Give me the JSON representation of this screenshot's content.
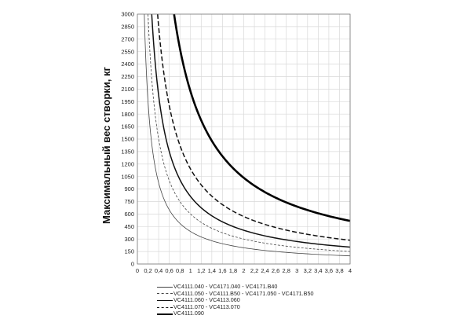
{
  "chart_data": {
    "type": "line",
    "title": "",
    "xlabel": "",
    "ylabel": "Максимальный вес створки, кг",
    "xlim": [
      0,
      4
    ],
    "ylim": [
      0,
      3000
    ],
    "grid": true,
    "legend_position": "bottom",
    "x_ticks": [
      "0",
      "0,2",
      "0,4",
      "0,6",
      "0,8",
      "1",
      "1,2",
      "1,4",
      "1,6",
      "1,8",
      "2",
      "2,2",
      "2,4",
      "2,6",
      "2,8",
      "3",
      "3,2",
      "3,4",
      "3,6",
      "3,8",
      "4"
    ],
    "y_ticks": [
      "0",
      "150",
      "300",
      "450",
      "600",
      "750",
      "900",
      "1050",
      "1200",
      "1350",
      "1500",
      "1650",
      "1800",
      "1950",
      "2100",
      "2250",
      "2400",
      "2550",
      "2700",
      "2850",
      "3000"
    ],
    "series": [
      {
        "name": "VC4111.040 - VC4171.040 - VC4171.B40",
        "style": "thin",
        "color": "#444444",
        "x": [
          0.13,
          0.15,
          0.2,
          0.3,
          0.4,
          0.5,
          0.6,
          0.8,
          1.0,
          1.2,
          1.5,
          2.0,
          2.5,
          3.0,
          3.5,
          4.0
        ],
        "y": [
          3000,
          2640,
          1980,
          1320,
          990,
          792,
          660,
          495,
          396,
          330,
          264,
          198,
          158,
          132,
          113,
          99
        ]
      },
      {
        "name": "VC4111.050 - VC4111.B50 - VC4171.050 - VC4171.B50",
        "style": "thin-dashed",
        "color": "#444444",
        "x": [
          0.2,
          0.25,
          0.3,
          0.4,
          0.5,
          0.6,
          0.8,
          1.0,
          1.2,
          1.5,
          2.0,
          2.5,
          3.0,
          3.5,
          4.0
        ],
        "y": [
          3000,
          2400,
          2000,
          1500,
          1200,
          1000,
          750,
          600,
          500,
          400,
          300,
          240,
          200,
          171,
          150
        ]
      },
      {
        "name": "VC4111.060 - VC4113.060",
        "style": "medium",
        "color": "#111111",
        "x": [
          0.27,
          0.3,
          0.4,
          0.5,
          0.6,
          0.8,
          1.0,
          1.2,
          1.5,
          2.0,
          2.5,
          3.0,
          3.5,
          4.0
        ],
        "y": [
          3000,
          2700,
          2025,
          1620,
          1350,
          1013,
          810,
          675,
          540,
          405,
          324,
          270,
          231,
          203
        ]
      },
      {
        "name": "VC4111.070 - VC4113.070",
        "style": "medium-dashed",
        "color": "#111111",
        "x": [
          0.38,
          0.4,
          0.5,
          0.6,
          0.8,
          1.0,
          1.2,
          1.5,
          2.0,
          2.5,
          3.0,
          3.5,
          4.0
        ],
        "y": [
          3000,
          2850,
          2280,
          1900,
          1425,
          1140,
          950,
          760,
          570,
          456,
          380,
          326,
          285
        ]
      },
      {
        "name": "VC4111.090",
        "style": "thick",
        "color": "#000000",
        "x": [
          0.69,
          0.8,
          1.0,
          1.2,
          1.5,
          2.0,
          2.5,
          3.0,
          3.5,
          4.0
        ],
        "y": [
          3000,
          2600,
          2080,
          1733,
          1387,
          1040,
          832,
          693,
          594,
          520
        ]
      }
    ]
  }
}
